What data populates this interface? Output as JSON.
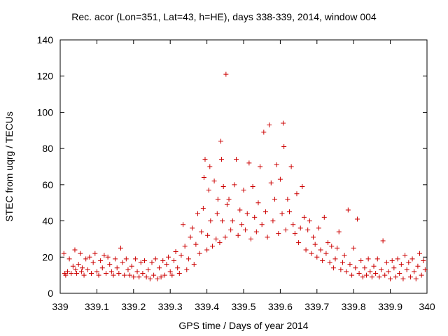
{
  "chart_data": {
    "type": "scatter",
    "title": "Rec. acor (Lon=351, Lat=43, h=HE), days 338-339, 2014, window 004",
    "xlabel": "GPS time / Days of year 2014",
    "ylabel": "STEC from uqrg / TECUs",
    "xlim": [
      339,
      340
    ],
    "ylim": [
      0,
      140
    ],
    "xticks": [
      339,
      339.1,
      339.2,
      339.3,
      339.4,
      339.5,
      339.6,
      339.7,
      339.8,
      339.9,
      340
    ],
    "xtick_labels": [
      "339",
      "339.1",
      "339.2",
      "339.3",
      "339.4",
      "339.5",
      "339.6",
      "339.7",
      "339.8",
      "339.9",
      "340"
    ],
    "yticks": [
      0,
      20,
      40,
      60,
      80,
      100,
      120,
      140
    ],
    "ytick_labels": [
      "0",
      "20",
      "40",
      "60",
      "80",
      "100",
      "120",
      "140"
    ],
    "grid": false,
    "marker": "plus",
    "color": "#cc0000",
    "series": [
      {
        "points": [
          [
            339.01,
            22
          ],
          [
            339.012,
            11
          ],
          [
            339.015,
            10
          ],
          [
            339.02,
            12
          ],
          [
            339.025,
            19
          ],
          [
            339.03,
            11
          ],
          [
            339.035,
            15
          ],
          [
            339.04,
            24
          ],
          [
            339.042,
            13
          ],
          [
            339.045,
            11
          ],
          [
            339.05,
            16
          ],
          [
            339.055,
            22
          ],
          [
            339.058,
            12
          ],
          [
            339.06,
            14
          ],
          [
            339.065,
            10
          ],
          [
            339.07,
            19
          ],
          [
            339.075,
            13
          ],
          [
            339.08,
            20
          ],
          [
            339.085,
            11
          ],
          [
            339.09,
            17
          ],
          [
            339.095,
            22
          ],
          [
            339.1,
            12
          ],
          [
            339.105,
            10
          ],
          [
            339.11,
            18
          ],
          [
            339.115,
            14
          ],
          [
            339.12,
            21
          ],
          [
            339.125,
            11
          ],
          [
            339.13,
            20
          ],
          [
            339.135,
            16
          ],
          [
            339.14,
            12
          ],
          [
            339.145,
            10
          ],
          [
            339.15,
            19
          ],
          [
            339.155,
            14
          ],
          [
            339.16,
            11
          ],
          [
            339.165,
            25
          ],
          [
            339.17,
            17
          ],
          [
            339.175,
            10
          ],
          [
            339.18,
            19
          ],
          [
            339.185,
            13
          ],
          [
            339.19,
            10
          ],
          [
            339.195,
            15
          ],
          [
            339.2,
            9
          ],
          [
            339.205,
            19
          ],
          [
            339.21,
            12
          ],
          [
            339.215,
            9
          ],
          [
            339.22,
            17
          ],
          [
            339.225,
            11
          ],
          [
            339.23,
            18
          ],
          [
            339.235,
            9
          ],
          [
            339.24,
            13
          ],
          [
            339.245,
            8
          ],
          [
            339.25,
            17
          ],
          [
            339.255,
            10
          ],
          [
            339.26,
            19
          ],
          [
            339.265,
            8
          ],
          [
            339.27,
            14
          ],
          [
            339.275,
            9
          ],
          [
            339.28,
            18
          ],
          [
            339.285,
            10
          ],
          [
            339.29,
            16
          ],
          [
            339.295,
            20
          ],
          [
            339.3,
            12
          ],
          [
            339.305,
            10
          ],
          [
            339.31,
            18
          ],
          [
            339.315,
            23
          ],
          [
            339.32,
            14
          ],
          [
            339.325,
            11
          ],
          [
            339.33,
            21
          ],
          [
            339.335,
            38
          ],
          [
            339.34,
            26
          ],
          [
            339.345,
            13
          ],
          [
            339.35,
            19
          ],
          [
            339.355,
            31
          ],
          [
            339.36,
            36
          ],
          [
            339.365,
            16
          ],
          [
            339.37,
            27
          ],
          [
            339.375,
            44
          ],
          [
            339.38,
            22
          ],
          [
            339.385,
            34
          ],
          [
            339.39,
            47
          ],
          [
            339.392,
            64
          ],
          [
            339.395,
            74
          ],
          [
            339.4,
            24
          ],
          [
            339.402,
            32
          ],
          [
            339.405,
            57
          ],
          [
            339.408,
            70
          ],
          [
            339.41,
            40
          ],
          [
            339.415,
            26
          ],
          [
            339.42,
            62
          ],
          [
            339.425,
            30
          ],
          [
            339.428,
            44
          ],
          [
            339.43,
            52
          ],
          [
            339.435,
            28
          ],
          [
            339.438,
            84
          ],
          [
            339.44,
            74
          ],
          [
            339.442,
            40
          ],
          [
            339.445,
            59
          ],
          [
            339.45,
            31
          ],
          [
            339.452,
            121
          ],
          [
            339.455,
            49
          ],
          [
            339.46,
            52
          ],
          [
            339.465,
            35
          ],
          [
            339.47,
            40
          ],
          [
            339.475,
            60
          ],
          [
            339.48,
            74
          ],
          [
            339.485,
            32
          ],
          [
            339.49,
            46
          ],
          [
            339.495,
            38
          ],
          [
            339.5,
            57
          ],
          [
            339.505,
            35
          ],
          [
            339.51,
            44
          ],
          [
            339.515,
            72
          ],
          [
            339.52,
            30
          ],
          [
            339.525,
            59
          ],
          [
            339.53,
            42
          ],
          [
            339.535,
            34
          ],
          [
            339.54,
            50
          ],
          [
            339.545,
            70
          ],
          [
            339.55,
            38
          ],
          [
            339.555,
            89
          ],
          [
            339.56,
            45
          ],
          [
            339.565,
            31
          ],
          [
            339.57,
            93
          ],
          [
            339.575,
            61
          ],
          [
            339.58,
            40
          ],
          [
            339.585,
            52
          ],
          [
            339.59,
            71
          ],
          [
            339.595,
            33
          ],
          [
            339.6,
            63
          ],
          [
            339.605,
            44
          ],
          [
            339.608,
            94
          ],
          [
            339.61,
            81
          ],
          [
            339.615,
            35
          ],
          [
            339.62,
            52
          ],
          [
            339.625,
            45
          ],
          [
            339.63,
            70
          ],
          [
            339.635,
            38
          ],
          [
            339.64,
            33
          ],
          [
            339.645,
            55
          ],
          [
            339.65,
            28
          ],
          [
            339.655,
            36
          ],
          [
            339.66,
            59
          ],
          [
            339.665,
            42
          ],
          [
            339.67,
            24
          ],
          [
            339.675,
            35
          ],
          [
            339.68,
            40
          ],
          [
            339.685,
            22
          ],
          [
            339.69,
            31
          ],
          [
            339.695,
            27
          ],
          [
            339.7,
            20
          ],
          [
            339.705,
            36
          ],
          [
            339.71,
            24
          ],
          [
            339.715,
            18
          ],
          [
            339.72,
            42
          ],
          [
            339.725,
            22
          ],
          [
            339.73,
            28
          ],
          [
            339.735,
            17
          ],
          [
            339.74,
            26
          ],
          [
            339.745,
            14
          ],
          [
            339.75,
            19
          ],
          [
            339.755,
            25
          ],
          [
            339.76,
            34
          ],
          [
            339.765,
            13
          ],
          [
            339.77,
            17
          ],
          [
            339.775,
            21
          ],
          [
            339.78,
            12
          ],
          [
            339.785,
            46
          ],
          [
            339.79,
            16
          ],
          [
            339.795,
            10
          ],
          [
            339.8,
            25
          ],
          [
            339.805,
            14
          ],
          [
            339.81,
            41
          ],
          [
            339.815,
            11
          ],
          [
            339.82,
            18
          ],
          [
            339.825,
            9
          ],
          [
            339.83,
            14
          ],
          [
            339.835,
            10
          ],
          [
            339.84,
            19
          ],
          [
            339.845,
            12
          ],
          [
            339.85,
            9
          ],
          [
            339.855,
            15
          ],
          [
            339.86,
            11
          ],
          [
            339.865,
            19
          ],
          [
            339.87,
            9
          ],
          [
            339.875,
            13
          ],
          [
            339.88,
            29
          ],
          [
            339.885,
            10
          ],
          [
            339.89,
            17
          ],
          [
            339.895,
            12
          ],
          [
            339.9,
            8
          ],
          [
            339.905,
            18
          ],
          [
            339.91,
            14
          ],
          [
            339.915,
            9
          ],
          [
            339.92,
            19
          ],
          [
            339.925,
            11
          ],
          [
            339.93,
            16
          ],
          [
            339.935,
            8
          ],
          [
            339.94,
            21
          ],
          [
            339.945,
            13
          ],
          [
            339.95,
            17
          ],
          [
            339.955,
            9
          ],
          [
            339.96,
            19
          ],
          [
            339.965,
            12
          ],
          [
            339.97,
            8
          ],
          [
            339.975,
            15
          ],
          [
            339.98,
            22
          ],
          [
            339.985,
            10
          ],
          [
            339.99,
            18
          ],
          [
            339.995,
            13
          ]
        ]
      }
    ]
  }
}
